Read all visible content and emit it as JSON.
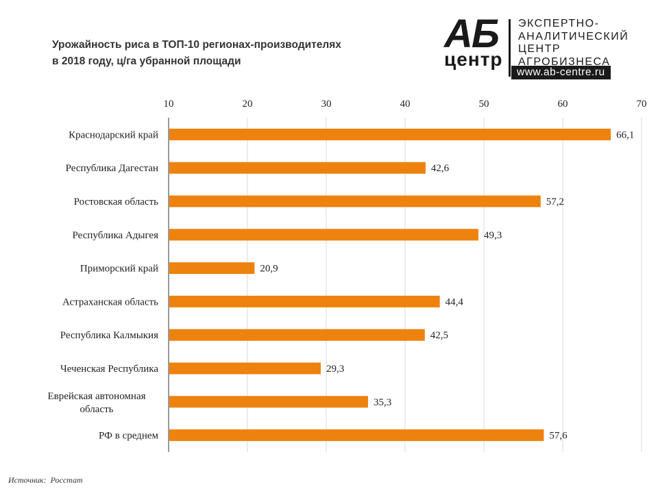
{
  "header": {
    "title_line1": "Урожайность риса в ТОП-10 регионах-производителях",
    "title_line2": "в 2018 году, ц/га убранной площади"
  },
  "logo": {
    "big": "АБ",
    "small": "центр",
    "lines": [
      "ЭКСПЕРТНО-",
      "АНАЛИТИЧЕСКИЙ",
      "ЦЕНТР",
      "АГРОБИЗНЕСА"
    ],
    "url": "www.ab-centre.ru"
  },
  "source": "Источник:  Росстат",
  "colors": {
    "bar": "#ee820e",
    "grid": "#d9d9d9",
    "axis": "#333333"
  },
  "chart_data": {
    "type": "bar",
    "orientation": "horizontal",
    "categories": [
      "Краснодарский край",
      "Республика Дагестан",
      "Ростовская область",
      "Республика Адыгея",
      "Приморский край",
      "Астраханская область",
      "Республика Калмыкия",
      "Чеченская Республика",
      "Еврейская автономная область",
      "РФ в среднем"
    ],
    "values": [
      66.1,
      42.6,
      57.2,
      49.3,
      20.9,
      44.4,
      42.5,
      29.3,
      35.3,
      57.6
    ],
    "value_labels": [
      "66,1",
      "42,6",
      "57,2",
      "49,3",
      "20,9",
      "44,4",
      "42,5",
      "29,3",
      "35,3",
      "57,6"
    ],
    "xlim": [
      10,
      70
    ],
    "xticks": [
      10,
      20,
      30,
      40,
      50,
      60,
      70
    ],
    "x_axis_position": "top",
    "grid": true
  }
}
